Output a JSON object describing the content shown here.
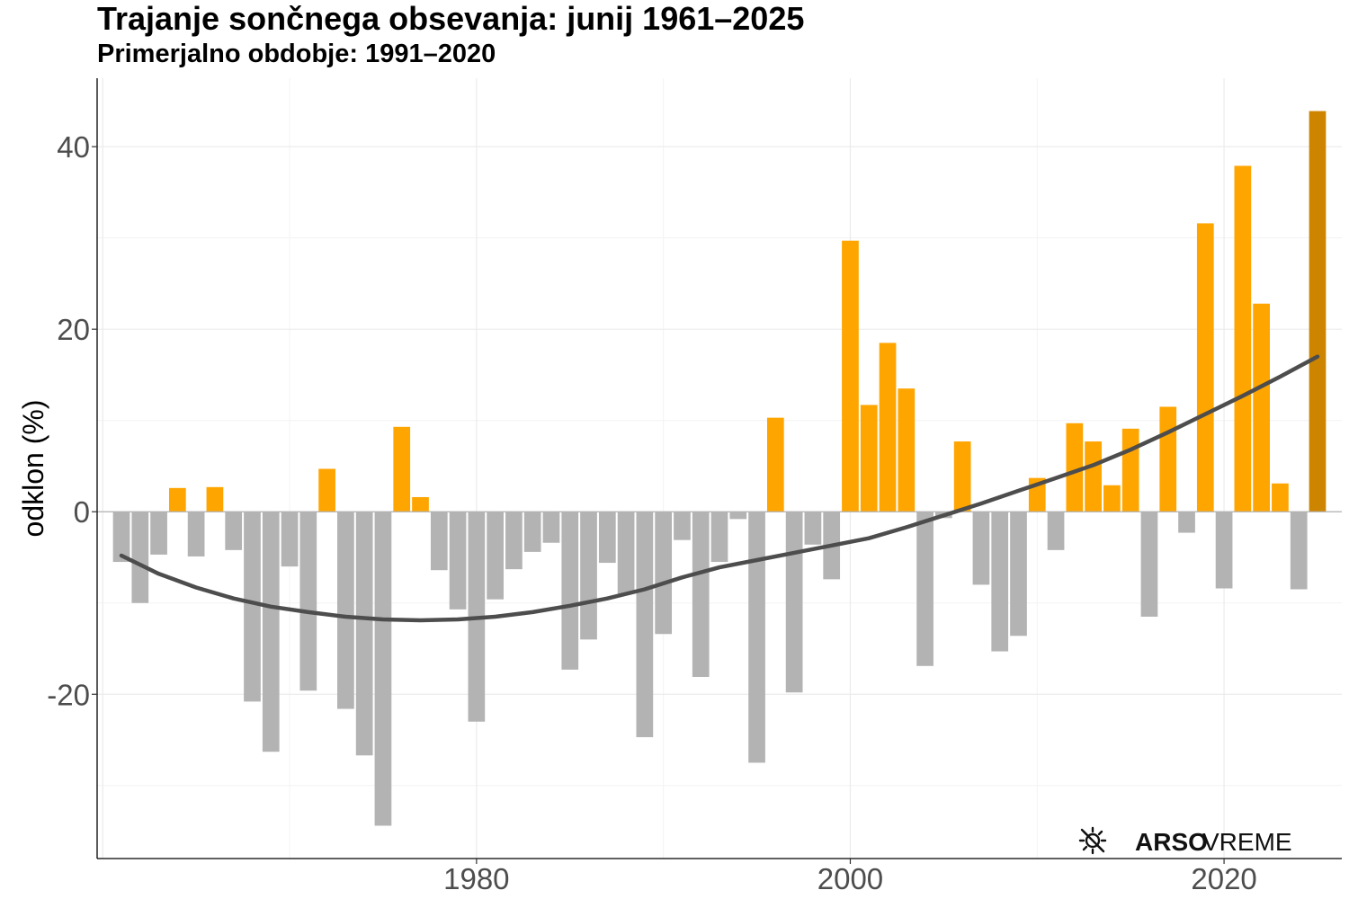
{
  "chart_data": {
    "type": "bar",
    "title": "Trajanje sončnega obsevanja: junij 1961–2025",
    "subtitle": "Primerjalno obdobje: 1991–2020",
    "xlabel": "",
    "ylabel": "odklon (%)",
    "xlim": [
      1959.7,
      2026.3
    ],
    "ylim": [
      -38,
      47.5
    ],
    "x_ticks": [
      1980,
      2000,
      2020
    ],
    "y_ticks": [
      40,
      20,
      0,
      -20
    ],
    "grid": true,
    "colors": {
      "positive": "#FFA500",
      "negative": "#B3B3B3",
      "latest": "#CD8500",
      "trend": "#4D4D4D",
      "axis": "#B3B3B3"
    },
    "x": [
      1961,
      1962,
      1963,
      1964,
      1965,
      1966,
      1967,
      1968,
      1969,
      1970,
      1971,
      1972,
      1973,
      1974,
      1975,
      1976,
      1977,
      1978,
      1979,
      1980,
      1981,
      1982,
      1983,
      1984,
      1985,
      1986,
      1987,
      1988,
      1989,
      1990,
      1991,
      1992,
      1993,
      1994,
      1995,
      1996,
      1997,
      1998,
      1999,
      2000,
      2001,
      2002,
      2003,
      2004,
      2005,
      2006,
      2007,
      2008,
      2009,
      2010,
      2011,
      2012,
      2013,
      2014,
      2015,
      2016,
      2017,
      2018,
      2019,
      2020,
      2021,
      2022,
      2023,
      2024,
      2025
    ],
    "values": [
      -5.5,
      -10,
      -4.7,
      2.6,
      -4.9,
      2.7,
      -4.2,
      -20.8,
      -26.3,
      -6,
      -19.6,
      4.7,
      -21.6,
      -26.7,
      -34.4,
      9.3,
      1.6,
      -6.4,
      -10.7,
      -23,
      -9.6,
      -6.3,
      -4.4,
      -3.4,
      -17.3,
      -14,
      -5.6,
      -9,
      -24.7,
      -13.4,
      -3.1,
      -18.1,
      -5.5,
      -0.8,
      -27.5,
      10.3,
      -19.8,
      -3.6,
      -7.4,
      29.7,
      11.7,
      18.5,
      13.5,
      -16.9,
      -0.7,
      7.7,
      -8,
      -15.3,
      -13.6,
      3.7,
      -4.2,
      9.7,
      7.7,
      2.9,
      9.1,
      -11.5,
      11.5,
      -2.3,
      31.6,
      -8.4,
      37.9,
      22.8,
      3.1,
      -8.5,
      43.9
    ],
    "trend": {
      "name": "",
      "x": [
        1961,
        1963,
        1965,
        1967,
        1969,
        1971,
        1973,
        1975,
        1977,
        1979,
        1981,
        1983,
        1985,
        1987,
        1989,
        1991,
        1993,
        1995,
        1997,
        1999,
        2001,
        2003,
        2005,
        2007,
        2009,
        2011,
        2013,
        2015,
        2017,
        2019,
        2021,
        2023,
        2025
      ],
      "values": [
        -4.8,
        -6.8,
        -8.3,
        -9.5,
        -10.4,
        -11,
        -11.5,
        -11.8,
        -11.9,
        -11.8,
        -11.5,
        -11,
        -10.3,
        -9.5,
        -8.5,
        -7.2,
        -6.1,
        -5.3,
        -4.5,
        -3.7,
        -2.9,
        -1.7,
        -0.4,
        0.9,
        2.3,
        3.7,
        5.1,
        6.8,
        8.7,
        10.7,
        12.7,
        14.8,
        17
      ]
    }
  },
  "logo": {
    "bold": "ARSO",
    "regular": "VREME"
  }
}
